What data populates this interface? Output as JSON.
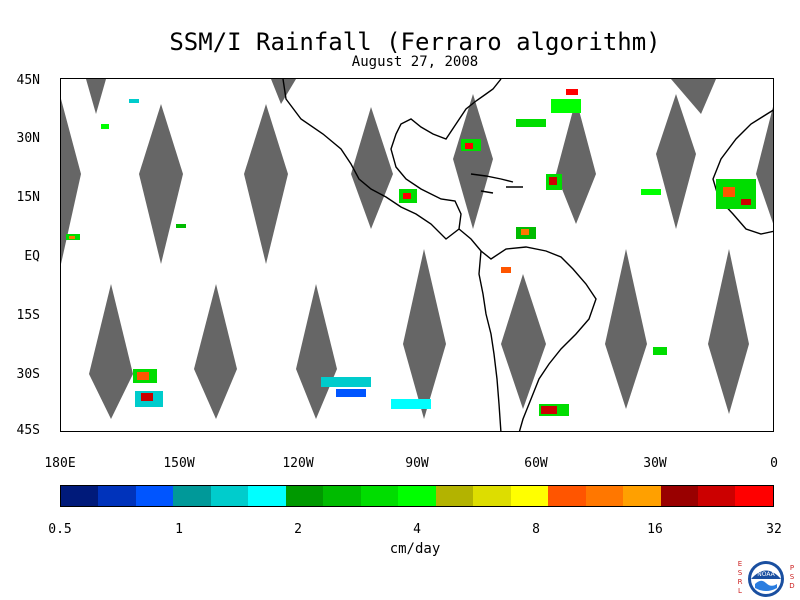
{
  "title": "SSM/I Rainfall (Ferraro algorithm)",
  "date": "August 27, 2008",
  "lat_labels": [
    "45N",
    "30N",
    "15N",
    "EQ",
    "15S",
    "30S",
    "45S"
  ],
  "lon_labels": [
    "180E",
    "150W",
    "120W",
    "90W",
    "60W",
    "30W",
    "0"
  ],
  "colorbar": {
    "colors": [
      "#001a7a",
      "#0033bb",
      "#0055ff",
      "#009999",
      "#00cccc",
      "#00ffff",
      "#009900",
      "#00bb00",
      "#00dd00",
      "#00ff00",
      "#b3b300",
      "#dddd00",
      "#ffff00",
      "#ff5500",
      "#ff7700",
      "#ffa000",
      "#990000",
      "#cc0000",
      "#ff0000"
    ],
    "tick_labels": [
      "0.5",
      "1",
      "2",
      "4",
      "8",
      "16",
      "32"
    ],
    "units": "cm/day"
  },
  "colors": {
    "swath_gap": "#666666",
    "coastline": "#000000"
  },
  "logo": {
    "left_letters": [
      "E",
      "S",
      "R",
      "L"
    ],
    "right_letters": [
      "P",
      "S",
      "D"
    ],
    "text": "NOAA"
  }
}
